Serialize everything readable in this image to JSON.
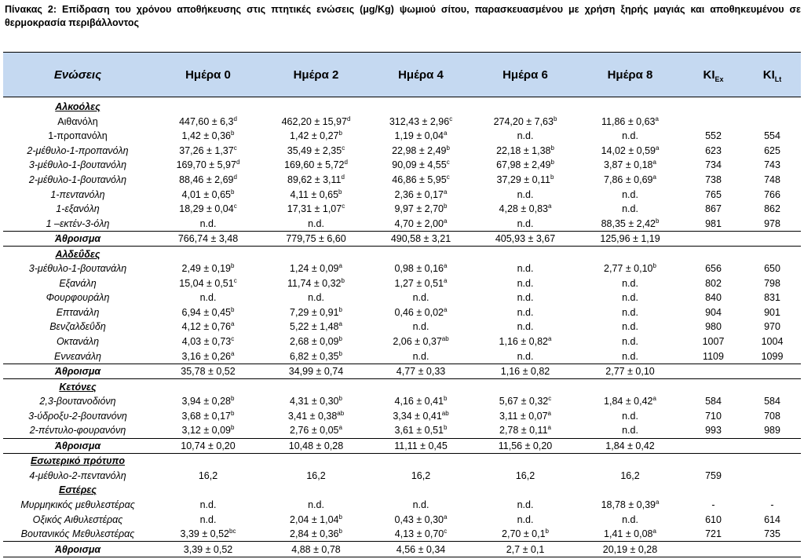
{
  "caption": "Πίνακας 2: Επίδραση του χρόνου αποθήκευσης στις πτητικές ενώσεις (μg/Kg) ψωμιού σίτου, παρασκευασμένου με χρήση ξηρής μαγιάς και αποθηκευμένου σε θερμοκρασία περιβάλλοντος",
  "headers": {
    "compounds": "Ενώσεις",
    "day0": "Ημέρα 0",
    "day2": "Ημέρα 2",
    "day4": "Ημέρα 4",
    "day6": "Ημέρα 6",
    "day8": "Ημέρα 8",
    "ki_ex": {
      "main": "KI",
      "sub": "Ex"
    },
    "ki_lt": {
      "main": "KI",
      "sub": "Lt"
    }
  },
  "rows": [
    {
      "type": "section",
      "name": "Αλκοόλες"
    },
    {
      "type": "plain",
      "name": "Αιθανόλη",
      "cells": [
        {
          "v": "447,60 ± 6,3",
          "s": "d"
        },
        {
          "v": "462,20 ± 15,97",
          "s": "d"
        },
        {
          "v": "312,43 ± 2,96",
          "s": "c"
        },
        {
          "v": "274,20 ± 7,63",
          "s": "b"
        },
        {
          "v": "11,86 ± 0,63",
          "s": "a"
        }
      ],
      "ki_ex": "",
      "ki_lt": ""
    },
    {
      "type": "plain",
      "name": "1-προπανόλη",
      "cells": [
        {
          "v": "1,42 ± 0,36",
          "s": "b"
        },
        {
          "v": "1,42 ± 0,27",
          "s": "b"
        },
        {
          "v": "1,19 ± 0,04",
          "s": "a"
        },
        {
          "v": "n.d.",
          "s": ""
        },
        {
          "v": "n.d.",
          "s": ""
        }
      ],
      "ki_ex": "552",
      "ki_lt": "554"
    },
    {
      "type": "italic",
      "name": "2-μέθυλο-1-προπανόλη",
      "cells": [
        {
          "v": "37,26 ± 1,37",
          "s": "c"
        },
        {
          "v": "35,49 ± 2,35",
          "s": "c"
        },
        {
          "v": "22,98 ± 2,49",
          "s": "b"
        },
        {
          "v": "22,18 ± 1,38",
          "s": "b"
        },
        {
          "v": "14,02 ± 0,59",
          "s": "a"
        }
      ],
      "ki_ex": "623",
      "ki_lt": "625"
    },
    {
      "type": "italic",
      "name": "3-μέθυλο-1-βουτανόλη",
      "cells": [
        {
          "v": "169,70 ± 5,97",
          "s": "d"
        },
        {
          "v": "169,60 ± 5,72",
          "s": "d"
        },
        {
          "v": "90,09 ± 4,55",
          "s": "c"
        },
        {
          "v": "67,98 ± 2,49",
          "s": "b"
        },
        {
          "v": "3,87 ± 0,18",
          "s": "a"
        }
      ],
      "ki_ex": "734",
      "ki_lt": "743"
    },
    {
      "type": "italic",
      "name": "2-μέθυλο-1-βουτανόλη",
      "cells": [
        {
          "v": "88,46 ± 2,69",
          "s": "d"
        },
        {
          "v": "89,62 ± 3,11",
          "s": "d"
        },
        {
          "v": "46,86 ± 5,95",
          "s": "c"
        },
        {
          "v": "37,29 ± 0,11",
          "s": "b"
        },
        {
          "v": "7,86 ± 0,69",
          "s": "a"
        }
      ],
      "ki_ex": "738",
      "ki_lt": "748"
    },
    {
      "type": "italic",
      "name": "1-πεντανόλη",
      "cells": [
        {
          "v": "4,01 ± 0,65",
          "s": "b"
        },
        {
          "v": "4,11 ± 0,65",
          "s": "b"
        },
        {
          "v": "2,36 ± 0,17",
          "s": "a"
        },
        {
          "v": "n.d.",
          "s": ""
        },
        {
          "v": "n.d.",
          "s": ""
        }
      ],
      "ki_ex": "765",
      "ki_lt": "766"
    },
    {
      "type": "italic",
      "name": "1-εξανόλη",
      "cells": [
        {
          "v": "18,29 ± 0,04",
          "s": "c"
        },
        {
          "v": "17,31 ± 1,07",
          "s": "c"
        },
        {
          "v": "9,97 ± 2,70",
          "s": "b"
        },
        {
          "v": "4,28 ± 0,83",
          "s": "a"
        },
        {
          "v": "n.d.",
          "s": ""
        }
      ],
      "ki_ex": "867",
      "ki_lt": "862"
    },
    {
      "type": "italic",
      "name": "1 –εκτέν-3-όλη",
      "cells": [
        {
          "v": "n.d.",
          "s": ""
        },
        {
          "v": "n.d.",
          "s": ""
        },
        {
          "v": "4,70 ± 2,00",
          "s": "a"
        },
        {
          "v": "n.d.",
          "s": ""
        },
        {
          "v": "88,35 ± 2,42",
          "s": "b"
        }
      ],
      "ki_ex": "981",
      "ki_lt": "978"
    },
    {
      "type": "total",
      "name": "Άθροισμα",
      "cells": [
        {
          "v": "766,74 ± 3,48",
          "s": ""
        },
        {
          "v": "779,75 ± 6,60",
          "s": ""
        },
        {
          "v": "490,58 ± 3,21",
          "s": ""
        },
        {
          "v": "405,93 ± 3,67",
          "s": ""
        },
        {
          "v": "125,96 ± 1,19",
          "s": ""
        }
      ],
      "ki_ex": "",
      "ki_lt": ""
    },
    {
      "type": "section",
      "name": "Αλδεΰδες"
    },
    {
      "type": "italic",
      "name": "3-μέθυλο-1-βουτανάλη",
      "cells": [
        {
          "v": "2,49 ± 0,19",
          "s": "b"
        },
        {
          "v": "1,24 ± 0,09",
          "s": "a"
        },
        {
          "v": "0,98 ± 0,16",
          "s": "a"
        },
        {
          "v": "n.d.",
          "s": ""
        },
        {
          "v": "2,77 ± 0,10",
          "s": "b"
        }
      ],
      "ki_ex": "656",
      "ki_lt": "650"
    },
    {
      "type": "italic",
      "name": "Εξανάλη",
      "cells": [
        {
          "v": "15,04 ± 0,51",
          "s": "c"
        },
        {
          "v": "11,74 ± 0,32",
          "s": "b"
        },
        {
          "v": "1,27 ± 0,51",
          "s": "a"
        },
        {
          "v": "n.d.",
          "s": ""
        },
        {
          "v": "n.d.",
          "s": ""
        }
      ],
      "ki_ex": "802",
      "ki_lt": "798"
    },
    {
      "type": "italic",
      "name": "Φουρφουράλη",
      "cells": [
        {
          "v": "n.d.",
          "s": ""
        },
        {
          "v": "n.d.",
          "s": ""
        },
        {
          "v": "n.d.",
          "s": ""
        },
        {
          "v": "n.d.",
          "s": ""
        },
        {
          "v": "n.d.",
          "s": ""
        }
      ],
      "ki_ex": "840",
      "ki_lt": "831"
    },
    {
      "type": "italic",
      "name": "Επτανάλη",
      "cells": [
        {
          "v": "6,94 ± 0,45",
          "s": "b"
        },
        {
          "v": "7,29 ± 0,91",
          "s": "b"
        },
        {
          "v": "0,46 ± 0,02",
          "s": "a"
        },
        {
          "v": "n.d.",
          "s": ""
        },
        {
          "v": "n.d.",
          "s": ""
        }
      ],
      "ki_ex": "904",
      "ki_lt": "901"
    },
    {
      "type": "italic",
      "name": "Βενζαλδεΰδη",
      "cells": [
        {
          "v": "4,12 ± 0,76",
          "s": "a"
        },
        {
          "v": "5,22 ± 1,48",
          "s": "a"
        },
        {
          "v": "n.d.",
          "s": ""
        },
        {
          "v": "n.d.",
          "s": ""
        },
        {
          "v": "n.d.",
          "s": ""
        }
      ],
      "ki_ex": "980",
      "ki_lt": "970"
    },
    {
      "type": "italic",
      "name": "Οκτανάλη",
      "cells": [
        {
          "v": "4,03 ± 0,73",
          "s": "c"
        },
        {
          "v": "2,68 ± 0,09",
          "s": "b"
        },
        {
          "v": "2,06 ± 0,37",
          "s": "ab"
        },
        {
          "v": "1,16 ± 0,82",
          "s": "a"
        },
        {
          "v": "n.d.",
          "s": ""
        }
      ],
      "ki_ex": "1007",
      "ki_lt": "1004"
    },
    {
      "type": "italic",
      "name": "Εννεανάλη",
      "cells": [
        {
          "v": "3,16 ± 0,26",
          "s": "a"
        },
        {
          "v": "6,82 ± 0,35",
          "s": "b"
        },
        {
          "v": "n.d.",
          "s": ""
        },
        {
          "v": "n.d.",
          "s": ""
        },
        {
          "v": "n.d.",
          "s": ""
        }
      ],
      "ki_ex": "1109",
      "ki_lt": "1099"
    },
    {
      "type": "total",
      "name": "Άθροισμα",
      "cells": [
        {
          "v": "35,78 ± 0,52",
          "s": ""
        },
        {
          "v": "34,99 ± 0,74",
          "s": ""
        },
        {
          "v": "4,77 ± 0,33",
          "s": ""
        },
        {
          "v": "1,16 ± 0,82",
          "s": ""
        },
        {
          "v": "2,77 ± 0,10",
          "s": ""
        }
      ],
      "ki_ex": "",
      "ki_lt": ""
    },
    {
      "type": "section",
      "name": "Κετόνες"
    },
    {
      "type": "italic",
      "name": "2,3-βουτανοδιόνη",
      "cells": [
        {
          "v": "3,94 ± 0,28",
          "s": "b"
        },
        {
          "v": "4,31 ± 0,30",
          "s": "b"
        },
        {
          "v": "4,16 ± 0,41",
          "s": "b"
        },
        {
          "v": "5,67 ± 0,32",
          "s": "c"
        },
        {
          "v": "1,84 ± 0,42",
          "s": "a"
        }
      ],
      "ki_ex": "584",
      "ki_lt": "584"
    },
    {
      "type": "italic",
      "name": "3-ύδροξυ-2-βουτανόνη",
      "cells": [
        {
          "v": "3,68 ± 0,17",
          "s": "b"
        },
        {
          "v": "3,41 ± 0,38",
          "s": "ab"
        },
        {
          "v": "3,34 ± 0,41",
          "s": "ab"
        },
        {
          "v": "3,11 ± 0,07",
          "s": "a"
        },
        {
          "v": "n.d.",
          "s": ""
        }
      ],
      "ki_ex": "710",
      "ki_lt": "708"
    },
    {
      "type": "italic",
      "name": "2-πέντυλο-φουρανόνη",
      "cells": [
        {
          "v": "3,12 ± 0,09",
          "s": "b"
        },
        {
          "v": "2,76 ± 0,05",
          "s": "a"
        },
        {
          "v": "3,61 ± 0,51",
          "s": "b"
        },
        {
          "v": "2,78 ± 0,11",
          "s": "a"
        },
        {
          "v": "n.d.",
          "s": ""
        }
      ],
      "ki_ex": "993",
      "ki_lt": "989"
    },
    {
      "type": "total",
      "name": "Άθροισμα",
      "cells": [
        {
          "v": "10,74 ± 0,20",
          "s": ""
        },
        {
          "v": "10,48 ± 0,28",
          "s": ""
        },
        {
          "v": "11,11 ± 0,45",
          "s": ""
        },
        {
          "v": "11,56 ± 0,20",
          "s": ""
        },
        {
          "v": "1,84 ± 0,42",
          "s": ""
        }
      ],
      "ki_ex": "",
      "ki_lt": ""
    },
    {
      "type": "section",
      "name": "Εσωτερικό πρότυπο"
    },
    {
      "type": "italic",
      "name": "4-μέθυλο-2-πεντανόλη",
      "cells": [
        {
          "v": "16,2",
          "s": ""
        },
        {
          "v": "16,2",
          "s": ""
        },
        {
          "v": "16,2",
          "s": ""
        },
        {
          "v": "16,2",
          "s": ""
        },
        {
          "v": "16,2",
          "s": ""
        }
      ],
      "ki_ex": "759",
      "ki_lt": ""
    },
    {
      "type": "section",
      "name": "Εστέρες"
    },
    {
      "type": "italic",
      "name": "Μυρμηκικός μεθυλεστέρας",
      "cells": [
        {
          "v": "n.d.",
          "s": ""
        },
        {
          "v": "n.d.",
          "s": ""
        },
        {
          "v": "n.d.",
          "s": ""
        },
        {
          "v": "n.d.",
          "s": ""
        },
        {
          "v": "18,78 ± 0,39",
          "s": "a"
        }
      ],
      "ki_ex": "-",
      "ki_lt": "-"
    },
    {
      "type": "italic",
      "name": "Οξικός Αιθυλεστέρας",
      "cells": [
        {
          "v": "n.d.",
          "s": ""
        },
        {
          "v": "2,04 ± 1,04",
          "s": "b"
        },
        {
          "v": "0,43 ± 0,30",
          "s": "a"
        },
        {
          "v": "n.d.",
          "s": ""
        },
        {
          "v": "n.d.",
          "s": ""
        }
      ],
      "ki_ex": "610",
      "ki_lt": "614"
    },
    {
      "type": "italic",
      "name": "Βουτανικός Μεθυλεστέρας",
      "cells": [
        {
          "v": "3,39 ± 0,52",
          "s": "bc"
        },
        {
          "v": "2,84 ± 0,36",
          "s": "b"
        },
        {
          "v": "4,13 ± 0,70",
          "s": "c"
        },
        {
          "v": "2,70 ± 0,1",
          "s": "b"
        },
        {
          "v": "1,41 ± 0,08",
          "s": "a"
        }
      ],
      "ki_ex": "721",
      "ki_lt": "735"
    },
    {
      "type": "total",
      "name": "Άθροισμα",
      "cells": [
        {
          "v": "3,39 ± 0,52",
          "s": ""
        },
        {
          "v": "4,88 ± 0,78",
          "s": ""
        },
        {
          "v": "4,56 ± 0,34",
          "s": ""
        },
        {
          "v": "2,7 ± 0,1",
          "s": ""
        },
        {
          "v": "20,19 ± 0,28",
          "s": ""
        }
      ],
      "ki_ex": "",
      "ki_lt": ""
    }
  ]
}
